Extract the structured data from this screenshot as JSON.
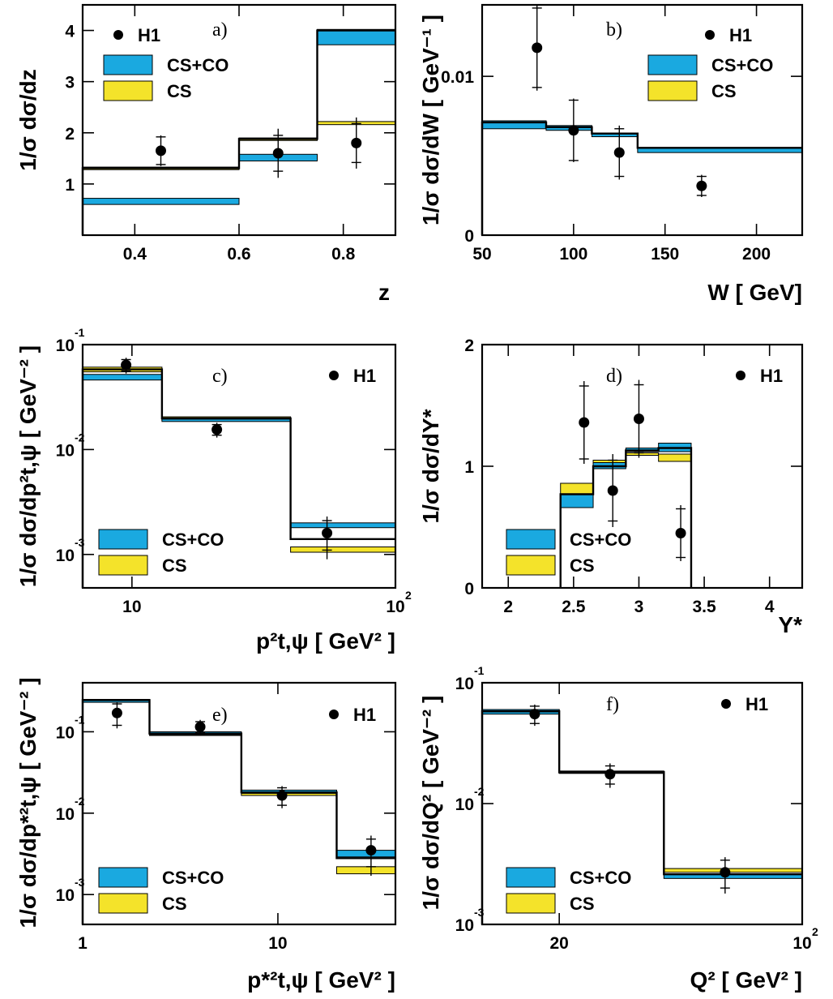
{
  "colors": {
    "cs_co": "#1aa9e0",
    "cs": "#f4e32a",
    "data": "#000000",
    "line": "#000000"
  },
  "legend_labels": {
    "data": "H1",
    "cs_co": "CS+CO",
    "cs": "CS"
  },
  "chart_data": [
    {
      "panel": "a)",
      "type": "bar",
      "ylabel": "1/σ dσ/dz",
      "xlabel": "z",
      "xlim": [
        0.3,
        0.9
      ],
      "ylim": [
        0,
        4.5
      ],
      "xscale": "linear",
      "yscale": "linear",
      "xticks": [
        {
          "v": 0.4,
          "l": "0.4"
        },
        {
          "v": 0.6,
          "l": "0.6"
        },
        {
          "v": 0.8,
          "l": "0.8"
        }
      ],
      "yticks": [
        {
          "v": 1,
          "l": "1"
        },
        {
          "v": 2,
          "l": "2"
        },
        {
          "v": 3,
          "l": "3"
        },
        {
          "v": 4,
          "l": "4"
        }
      ],
      "bins": [
        [
          0.3,
          0.6
        ],
        [
          0.6,
          0.75
        ],
        [
          0.75,
          0.9
        ]
      ],
      "cs_co_band": [
        [
          0.6,
          0.72
        ],
        [
          1.45,
          1.58
        ],
        [
          3.72,
          4.02
        ]
      ],
      "cs_band": [
        [
          1.28,
          1.33
        ],
        [
          1.85,
          1.9
        ],
        [
          2.16,
          2.22
        ]
      ],
      "outlines": [
        1.31,
        1.88,
        4.0
      ],
      "h1": [
        {
          "x": 0.45,
          "y": 1.65,
          "stat": 0.27,
          "tot": 0.3
        },
        {
          "x": 0.675,
          "y": 1.6,
          "stat": 0.35,
          "tot": 0.48
        },
        {
          "x": 0.825,
          "y": 1.8,
          "stat": 0.38,
          "tot": 0.5
        }
      ],
      "legend": {
        "data": "top-left",
        "bands": "left"
      }
    },
    {
      "panel": "b)",
      "type": "bar",
      "ylabel": "1/σ dσ/dW [ GeV⁻¹ ]",
      "xlabel": "W [ GeV]",
      "xlim": [
        50,
        225
      ],
      "ylim": [
        0,
        0.0145
      ],
      "xscale": "linear",
      "yscale": "linear",
      "xticks": [
        {
          "v": 50,
          "l": "50"
        },
        {
          "v": 100,
          "l": "100"
        },
        {
          "v": 150,
          "l": "150"
        },
        {
          "v": 200,
          "l": "200"
        }
      ],
      "yticks": [
        {
          "v": 0,
          "l": "0"
        },
        {
          "v": 0.01,
          "l": "0.01"
        }
      ],
      "bins": [
        [
          50,
          85
        ],
        [
          85,
          110
        ],
        [
          110,
          135
        ],
        [
          135,
          225
        ]
      ],
      "cs_co_band": [
        [
          0.0067,
          0.0072
        ],
        [
          0.0066,
          0.0069
        ],
        [
          0.0062,
          0.0064
        ],
        [
          0.0052,
          0.0055
        ]
      ],
      "cs_band": [],
      "outlines": [
        0.0071,
        0.0068,
        0.0064,
        0.0055
      ],
      "h1": [
        {
          "x": 80,
          "y": 0.0118,
          "stat": 0.0025,
          "tot": 0.0027
        },
        {
          "x": 100,
          "y": 0.0066,
          "stat": 0.0019,
          "tot": 0.002
        },
        {
          "x": 125,
          "y": 0.0052,
          "stat": 0.0015,
          "tot": 0.0017
        },
        {
          "x": 170,
          "y": 0.0031,
          "stat": 0.0006,
          "tot": 0.0007
        }
      ],
      "legend": {
        "data": "top-right",
        "bands": "right"
      }
    },
    {
      "panel": "c)",
      "type": "bar",
      "ylabel": "1/σ dσ/dp²t,ψ [ GeV⁻² ]",
      "xlabel": "p²t,ψ [ GeV² ]",
      "xlim": [
        6.5,
        100
      ],
      "ylim": [
        0.00048,
        0.1
      ],
      "xscale": "log",
      "yscale": "log",
      "xticks": [
        {
          "v": 10,
          "l": "10"
        },
        {
          "v": 100,
          "l": "10",
          "exp": "2"
        }
      ],
      "yticks": [
        {
          "v": 0.001,
          "l": "10",
          "exp": "-3"
        },
        {
          "v": 0.01,
          "l": "10",
          "exp": "-2"
        },
        {
          "v": 0.1,
          "l": "10",
          "exp": "-1"
        }
      ],
      "bins": [
        [
          6.5,
          13
        ],
        [
          13,
          40
        ],
        [
          40,
          100
        ]
      ],
      "cs_co_band": [
        [
          0.046,
          0.052
        ],
        [
          0.0185,
          0.0195
        ],
        [
          0.0018,
          0.002
        ]
      ],
      "cs_band": [
        [
          0.055,
          0.061
        ],
        [
          0.019,
          0.0205
        ],
        [
          0.00105,
          0.00118
        ]
      ],
      "outlines": [
        0.058,
        0.0198,
        0.0014
      ],
      "h1": [
        {
          "x": 9.5,
          "y": 0.064,
          "stat": 0.008,
          "tot": 0.011
        },
        {
          "x": 21,
          "y": 0.0155,
          "stat": 0.0018,
          "tot": 0.0025
        },
        {
          "x": 55,
          "y": 0.0016,
          "stat": 0.0005,
          "tot": 0.0007
        }
      ],
      "legend": {
        "data": "top-right",
        "bands": "bottom-left"
      }
    },
    {
      "panel": "d)",
      "type": "bar",
      "ylabel": "1/σ dσ/dY*",
      "xlabel": "Y*",
      "xlim": [
        1.8,
        4.25
      ],
      "ylim": [
        0,
        2
      ],
      "xscale": "linear",
      "yscale": "linear",
      "xticks": [
        {
          "v": 2,
          "l": "2"
        },
        {
          "v": 2.5,
          "l": "2.5"
        },
        {
          "v": 3,
          "l": "3"
        },
        {
          "v": 3.5,
          "l": "3.5"
        },
        {
          "v": 4,
          "l": "4"
        }
      ],
      "yticks": [
        {
          "v": 0,
          "l": "0"
        },
        {
          "v": 1,
          "l": "1"
        },
        {
          "v": 2,
          "l": "2"
        }
      ],
      "bins": [
        [
          2.4,
          2.65
        ],
        [
          2.65,
          2.9
        ],
        [
          2.9,
          3.15
        ],
        [
          3.15,
          3.4
        ]
      ],
      "cs_co_band": [
        [
          0.66,
          0.77
        ],
        [
          0.98,
          1.03
        ],
        [
          1.12,
          1.15
        ],
        [
          1.12,
          1.19
        ]
      ],
      "cs_band": [
        [
          0.77,
          0.86
        ],
        [
          1.02,
          1.05
        ],
        [
          1.09,
          1.11
        ],
        [
          1.04,
          1.1
        ]
      ],
      "outlines": [
        0.77,
        1.0,
        1.13,
        1.15
      ],
      "h1": [
        {
          "x": 2.58,
          "y": 1.36,
          "stat": 0.3,
          "tot": 0.34
        },
        {
          "x": 2.8,
          "y": 0.8,
          "stat": 0.25,
          "tot": 0.3
        },
        {
          "x": 3.0,
          "y": 1.39,
          "stat": 0.28,
          "tot": 0.32
        },
        {
          "x": 3.32,
          "y": 0.45,
          "stat": 0.2,
          "tot": 0.23
        }
      ],
      "legend": {
        "data": "top-right",
        "bands": "bottom-left"
      }
    },
    {
      "panel": "e)",
      "type": "bar",
      "ylabel": "1/σ dσ/dp*²t,ψ [ GeV⁻² ]",
      "xlabel": "p*²t,ψ [ GeV² ]",
      "xlim": [
        1,
        40
      ],
      "ylim": [
        0.00043,
        0.4
      ],
      "xscale": "log",
      "yscale": "log",
      "xticks": [
        {
          "v": 1,
          "l": "1"
        },
        {
          "v": 10,
          "l": "10"
        }
      ],
      "yticks": [
        {
          "v": 0.001,
          "l": "10",
          "exp": "-3"
        },
        {
          "v": 0.01,
          "l": "10",
          "exp": "-2"
        },
        {
          "v": 0.1,
          "l": "10",
          "exp": "-1"
        }
      ],
      "bins": [
        [
          1,
          2.2
        ],
        [
          2.2,
          6.5
        ],
        [
          6.5,
          20
        ],
        [
          20,
          40
        ]
      ],
      "cs_co_band": [
        [
          0.23,
          0.25
        ],
        [
          0.092,
          0.1
        ],
        [
          0.0175,
          0.0192
        ],
        [
          0.0029,
          0.0035
        ]
      ],
      "cs_band": [
        [
          0.235,
          0.25
        ],
        [
          0.09,
          0.098
        ],
        [
          0.0165,
          0.0185
        ],
        [
          0.0018,
          0.0022
        ]
      ],
      "outlines": [
        0.245,
        0.095,
        0.018,
        0.0028
      ],
      "h1": [
        {
          "x": 1.5,
          "y": 0.17,
          "stat": 0.05,
          "tot": 0.06
        },
        {
          "x": 4,
          "y": 0.115,
          "stat": 0.018,
          "tot": 0.025
        },
        {
          "x": 10.5,
          "y": 0.0165,
          "stat": 0.004,
          "tot": 0.005
        },
        {
          "x": 30,
          "y": 0.0035,
          "stat": 0.0013,
          "tot": 0.0018
        }
      ],
      "legend": {
        "data": "top-right",
        "bands": "bottom-left"
      }
    },
    {
      "panel": "f)",
      "type": "bar",
      "ylabel": "1/σ dσ/dQ² [ GeV⁻² ]",
      "xlabel": "Q² [ GeV² ]",
      "xlim": [
        12,
        100
      ],
      "ylim": [
        0.001,
        0.1
      ],
      "xscale": "log",
      "yscale": "log",
      "xticks": [
        {
          "v": 20,
          "l": "20"
        },
        {
          "v": 100,
          "l": "10",
          "exp": "2"
        }
      ],
      "yticks": [
        {
          "v": 0.001,
          "l": "10",
          "exp": "-3"
        },
        {
          "v": 0.01,
          "l": "10",
          "exp": "-2"
        },
        {
          "v": 0.1,
          "l": "10",
          "exp": "-1"
        }
      ],
      "bins": [
        [
          12,
          20
        ],
        [
          20,
          40
        ],
        [
          40,
          100
        ]
      ],
      "cs_co_band": [
        [
          0.055,
          0.06
        ],
        [
          0.0178,
          0.0186
        ],
        [
          0.0024,
          0.0026
        ]
      ],
      "cs_band": [
        [
          0.057,
          0.06
        ],
        [
          0.0178,
          0.0184
        ],
        [
          0.0027,
          0.0029
        ]
      ],
      "outlines": [
        0.058,
        0.0182,
        0.0026
      ],
      "h1": [
        {
          "x": 17,
          "y": 0.055,
          "stat": 0.009,
          "tot": 0.011
        },
        {
          "x": 28,
          "y": 0.0175,
          "stat": 0.003,
          "tot": 0.004
        },
        {
          "x": 60,
          "y": 0.0027,
          "stat": 0.0007,
          "tot": 0.0009
        }
      ],
      "legend": {
        "data": "top-right",
        "bands": "bottom-left"
      }
    }
  ]
}
